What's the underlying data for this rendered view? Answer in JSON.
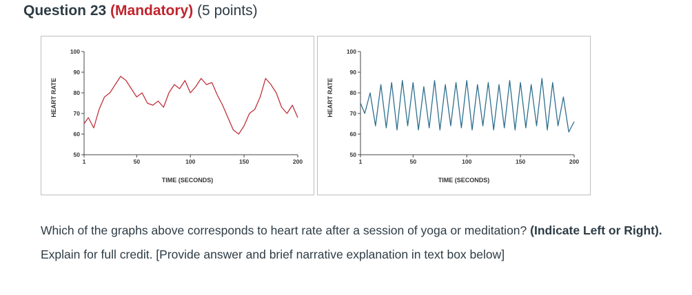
{
  "question": {
    "number": "Question 23",
    "mandatory": "(Mandatory)",
    "points": "(5 points)"
  },
  "prompt": {
    "part1": "Which of the graphs above corresponds to heart rate after a session of yoga or meditation?",
    "part2": "(Indicate Left or Right).",
    "part3": "Explain for full credit. [Provide answer and brief narrative explanation in text box below]"
  },
  "chart_data": [
    {
      "type": "line",
      "title": "",
      "xlabel": "TIME (SECONDS)",
      "ylabel": "HEART RATE",
      "xlim": [
        1,
        200
      ],
      "ylim": [
        50,
        100
      ],
      "xticks": [
        "1",
        "50",
        "100",
        "150",
        "200"
      ],
      "yticks": [
        "50",
        "60",
        "70",
        "80",
        "90",
        "100"
      ],
      "color": "#c0303b",
      "x": [
        1,
        5,
        10,
        15,
        20,
        25,
        30,
        35,
        40,
        45,
        50,
        55,
        60,
        65,
        70,
        75,
        80,
        85,
        90,
        95,
        100,
        105,
        110,
        115,
        120,
        125,
        130,
        135,
        140,
        145,
        150,
        155,
        160,
        165,
        170,
        175,
        180,
        185,
        190,
        195,
        200
      ],
      "y": [
        65,
        68,
        63,
        72,
        78,
        80,
        84,
        88,
        86,
        82,
        78,
        80,
        75,
        74,
        76,
        73,
        80,
        84,
        82,
        86,
        80,
        83,
        87,
        84,
        85,
        79,
        74,
        68,
        62,
        60,
        64,
        70,
        72,
        78,
        87,
        84,
        80,
        73,
        70,
        74,
        68
      ]
    },
    {
      "type": "line",
      "title": "",
      "xlabel": "TIME (SECONDS)",
      "ylabel": "HEART RATE",
      "xlim": [
        1,
        200
      ],
      "ylim": [
        50,
        100
      ],
      "xticks": [
        "1",
        "50",
        "100",
        "150",
        "200"
      ],
      "yticks": [
        "50",
        "60",
        "70",
        "80",
        "90",
        "100"
      ],
      "color": "#2e6f8e",
      "x": [
        1,
        5,
        10,
        15,
        20,
        25,
        30,
        35,
        40,
        45,
        50,
        55,
        60,
        65,
        70,
        75,
        80,
        85,
        90,
        95,
        100,
        105,
        110,
        115,
        120,
        125,
        130,
        135,
        140,
        145,
        150,
        155,
        160,
        165,
        170,
        175,
        180,
        185,
        190,
        195,
        200
      ],
      "y": [
        75,
        70,
        80,
        64,
        84,
        63,
        85,
        62,
        86,
        64,
        85,
        62,
        83,
        63,
        86,
        62,
        84,
        64,
        85,
        63,
        86,
        62,
        84,
        64,
        85,
        62,
        84,
        63,
        86,
        62,
        85,
        63,
        84,
        64,
        87,
        62,
        85,
        64,
        78,
        61,
        66
      ]
    }
  ]
}
